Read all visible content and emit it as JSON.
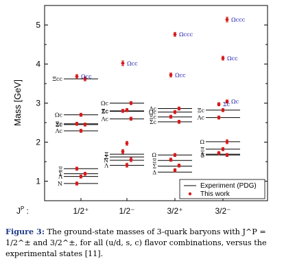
{
  "chart_data": {
    "type": "scatter",
    "ylabel": "Mass [GeV]",
    "ylim": [
      0.5,
      5.5
    ],
    "yticks": [
      1,
      2,
      3,
      4,
      5
    ],
    "jp_axis_label": "J",
    "jp_axis_label_sup": "P",
    "jp_axis_label_suffix": " :",
    "categories": [
      "1/2⁺",
      "1/2⁻",
      "3/2⁺",
      "3/2⁻"
    ],
    "legend": {
      "placement": "bottom-right",
      "entries": [
        {
          "name": "Experiment (PDG)",
          "marker": "line"
        },
        {
          "name": "This work",
          "marker": "dot"
        }
      ]
    },
    "colors": {
      "experiment": "#000000",
      "this_work": "#d41a1a",
      "predicted_label": "#1a1aaa"
    },
    "experiment_levels": [
      {
        "column": 0,
        "label": "N",
        "mass": 0.94
      },
      {
        "column": 0,
        "label": "Λ",
        "mass": 1.12
      },
      {
        "column": 0,
        "label": "Σ",
        "mass": 1.19
      },
      {
        "column": 0,
        "label": "Ξ",
        "mass": 1.32
      },
      {
        "column": 0,
        "label": "Λc",
        "mass": 2.29
      },
      {
        "column": 0,
        "label": "Σc",
        "mass": 2.45
      },
      {
        "column": 0,
        "label": "Ξc",
        "mass": 2.47
      },
      {
        "column": 0,
        "label": "Ωc",
        "mass": 2.7
      },
      {
        "column": 0,
        "label": "Ξcc",
        "mass": 3.62
      },
      {
        "column": 1,
        "label": "Λ",
        "mass": 1.405
      },
      {
        "column": 1,
        "label": "N",
        "mass": 1.535
      },
      {
        "column": 1,
        "label": "Σ",
        "mass": 1.62
      },
      {
        "column": 1,
        "label": "Ξ",
        "mass": 1.69
      },
      {
        "column": 1,
        "label": "Λc",
        "mass": 2.595
      },
      {
        "column": 1,
        "label": "Σc",
        "mass": 2.8
      },
      {
        "column": 1,
        "label": "Ξc",
        "mass": 2.79
      },
      {
        "column": 1,
        "label": "Ωc",
        "mass": 3.0
      },
      {
        "column": 2,
        "label": "Δ",
        "mass": 1.232
      },
      {
        "column": 2,
        "label": "Σ",
        "mass": 1.385
      },
      {
        "column": 2,
        "label": "Ξ",
        "mass": 1.53
      },
      {
        "column": 2,
        "label": "Ω",
        "mass": 1.672
      },
      {
        "column": 2,
        "label": "Ξc",
        "mass": 2.645
      },
      {
        "column": 2,
        "label": "Σc",
        "mass": 2.52
      },
      {
        "column": 2,
        "label": "Ωc",
        "mass": 2.77
      },
      {
        "column": 2,
        "label": "Λc",
        "mass": 2.86
      },
      {
        "column": 3,
        "label": "Σ",
        "mass": 1.67
      },
      {
        "column": 3,
        "label": "Λ",
        "mass": 1.69
      },
      {
        "column": 3,
        "label": "Ξ",
        "mass": 1.82
      },
      {
        "column": 3,
        "label": "Ω",
        "mass": 2.01
      },
      {
        "column": 3,
        "label": "Λc",
        "mass": 2.63
      },
      {
        "column": 3,
        "label": "Ξc",
        "mass": 2.82
      }
    ],
    "this_work": [
      {
        "column": 0,
        "mass": 0.94,
        "err": 0.04
      },
      {
        "column": 0,
        "mass": 1.12,
        "err": 0.04
      },
      {
        "column": 0,
        "mass": 1.19,
        "err": 0.04
      },
      {
        "column": 0,
        "mass": 1.32,
        "err": 0.04
      },
      {
        "column": 0,
        "mass": 2.29,
        "err": 0.04
      },
      {
        "column": 0,
        "mass": 2.45,
        "err": 0.04
      },
      {
        "column": 0,
        "mass": 2.47,
        "err": 0.04
      },
      {
        "column": 0,
        "mass": 2.7,
        "err": 0.04
      },
      {
        "column": 0,
        "mass": 3.62,
        "err": 0.05
      },
      {
        "column": 0,
        "mass": 3.68,
        "err": 0.05,
        "label": "Ωcc"
      },
      {
        "column": 1,
        "mass": 1.41,
        "err": 0.05
      },
      {
        "column": 1,
        "mass": 1.55,
        "err": 0.05
      },
      {
        "column": 1,
        "mass": 1.76,
        "err": 0.05
      },
      {
        "column": 1,
        "mass": 1.97,
        "err": 0.05
      },
      {
        "column": 1,
        "mass": 2.6,
        "err": 0.04
      },
      {
        "column": 1,
        "mass": 2.8,
        "err": 0.04
      },
      {
        "column": 1,
        "mass": 2.82,
        "err": 0.04
      },
      {
        "column": 1,
        "mass": 3.0,
        "err": 0.04
      },
      {
        "column": 1,
        "mass": 4.02,
        "err": 0.06,
        "label": "Ωcc"
      },
      {
        "column": 2,
        "mass": 1.28,
        "err": 0.04
      },
      {
        "column": 2,
        "mass": 1.4,
        "err": 0.04
      },
      {
        "column": 2,
        "mass": 1.55,
        "err": 0.04
      },
      {
        "column": 2,
        "mass": 1.67,
        "err": 0.04
      },
      {
        "column": 2,
        "mass": 2.52,
        "err": 0.04
      },
      {
        "column": 2,
        "mass": 2.65,
        "err": 0.04
      },
      {
        "column": 2,
        "mass": 2.77,
        "err": 0.04
      },
      {
        "column": 2,
        "mass": 2.86,
        "err": 0.04
      },
      {
        "column": 2,
        "mass": 3.72,
        "err": 0.05,
        "label": "Ωcc"
      },
      {
        "column": 2,
        "mass": 4.76,
        "err": 0.05,
        "label": "Ωccc"
      },
      {
        "column": 3,
        "mass": 1.67,
        "err": 0.04
      },
      {
        "column": 3,
        "mass": 1.72,
        "err": 0.04
      },
      {
        "column": 3,
        "mass": 1.82,
        "err": 0.04
      },
      {
        "column": 3,
        "mass": 2.01,
        "err": 0.05
      },
      {
        "column": 3,
        "mass": 2.63,
        "err": 0.04
      },
      {
        "column": 3,
        "mass": 2.82,
        "err": 0.04
      },
      {
        "column": 3,
        "mass": 3.04,
        "err": 0.04,
        "label": "Ωc"
      },
      {
        "column": 3,
        "mass": 2.97,
        "err": 0.04,
        "label": "Σc"
      },
      {
        "column": 3,
        "mass": 4.15,
        "err": 0.05,
        "label": "Ωcc"
      },
      {
        "column": 3,
        "mass": 5.14,
        "err": 0.06,
        "label": "Ωccc"
      }
    ]
  },
  "caption": {
    "figure_label": "Figure 3:",
    "text": "The ground-state masses of 3-quark baryons with J^P = 1/2^± and 3/2^±, for all (u/d, s, c) flavor combinations, versus the experimental states [11]."
  }
}
